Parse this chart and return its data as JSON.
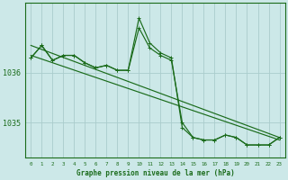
{
  "background_color": "#cce8e8",
  "grid_color": "#aacccc",
  "line_color": "#1a6b1a",
  "title": "Graphe pression niveau de la mer (hPa)",
  "ylabel_ticks": [
    1035,
    1036
  ],
  "xlim": [
    -0.5,
    23.5
  ],
  "ylim": [
    1034.3,
    1037.4
  ],
  "xticks": [
    0,
    1,
    2,
    3,
    4,
    5,
    6,
    7,
    8,
    9,
    10,
    11,
    12,
    13,
    14,
    15,
    16,
    17,
    18,
    19,
    20,
    21,
    22,
    23
  ],
  "series_main": {
    "x": [
      0,
      1,
      2,
      3,
      4,
      5,
      6,
      7,
      8,
      9,
      10,
      11,
      12,
      13,
      14,
      15,
      16,
      17,
      18,
      19,
      20,
      21,
      22,
      23
    ],
    "y": [
      1036.3,
      1036.55,
      1036.25,
      1036.35,
      1036.35,
      1036.2,
      1036.1,
      1036.15,
      1036.05,
      1036.05,
      1037.1,
      1036.6,
      1036.4,
      1036.3,
      1034.9,
      1034.7,
      1034.65,
      1034.65,
      1034.75,
      1034.7,
      1034.55,
      1034.55,
      1034.55,
      1034.7
    ]
  },
  "series_trend1": {
    "x": [
      0,
      23
    ],
    "y": [
      1036.55,
      1034.7
    ]
  },
  "series_trend2": {
    "x": [
      0,
      23
    ],
    "y": [
      1036.35,
      1034.65
    ]
  },
  "series_smooth": {
    "x": [
      0,
      1,
      2,
      3,
      4,
      5,
      6,
      7,
      8,
      9,
      10,
      11,
      12,
      13,
      14,
      15,
      16,
      17,
      18,
      19,
      20,
      21,
      22,
      23
    ],
    "y": [
      1036.3,
      1036.55,
      1036.25,
      1036.35,
      1036.35,
      1036.2,
      1036.1,
      1036.15,
      1036.05,
      1036.05,
      1036.9,
      1036.5,
      1036.35,
      1036.25,
      1035.0,
      1034.7,
      1034.65,
      1034.65,
      1034.75,
      1034.7,
      1034.55,
      1034.55,
      1034.55,
      1034.7
    ]
  }
}
